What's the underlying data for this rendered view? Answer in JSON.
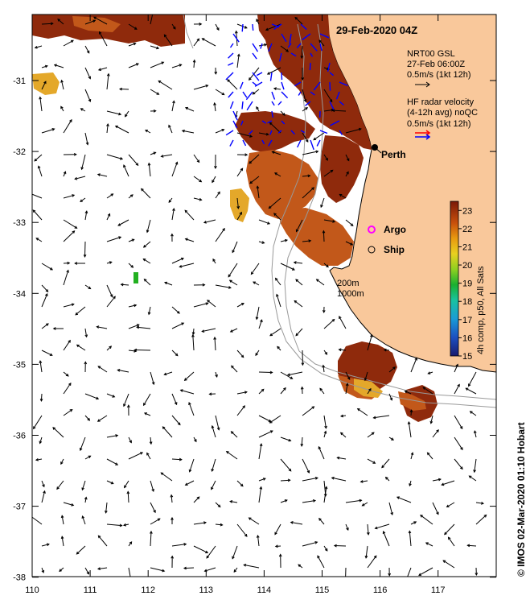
{
  "title": "29-Feb-2020 04Z",
  "axes": {
    "lon_ticks": [
      "110",
      "111",
      "112",
      "113",
      "114",
      "115",
      "116",
      "117"
    ],
    "lat_ticks": [
      "-31",
      "-32",
      "-33",
      "-34",
      "-35",
      "-36",
      "-37",
      "-38"
    ]
  },
  "legend": {
    "gsl_line1": "NRT00 GSL",
    "gsl_line2": "27-Feb 06:00Z",
    "gsl_line3": "0.5m/s (1kt 12h)",
    "hf_line1": "HF radar velocity",
    "hf_line2": "(4-12h avg) noQC",
    "hf_line3": "0.5m/s (1kt 12h)",
    "argo": "Argo",
    "ship": "Ship",
    "isobath_200": "200m",
    "isobath_1000": "1000m",
    "city": "Perth",
    "colors": {
      "land": "#f9c89b",
      "gsl_arrow": "#000000",
      "hf_arrow_red": "#ff0000",
      "hf_arrow_blue": "#0000ff",
      "argo": "#ff00ff"
    }
  },
  "colorbar": {
    "ticks": [
      "23",
      "22",
      "21",
      "20",
      "19",
      "18",
      "17",
      "16",
      "15"
    ],
    "label": "4h comp, p50, All Sats",
    "min": 15,
    "max": 23.5
  },
  "credit": "© IMOS 02-Mar-2020 01:10 Hobart"
}
